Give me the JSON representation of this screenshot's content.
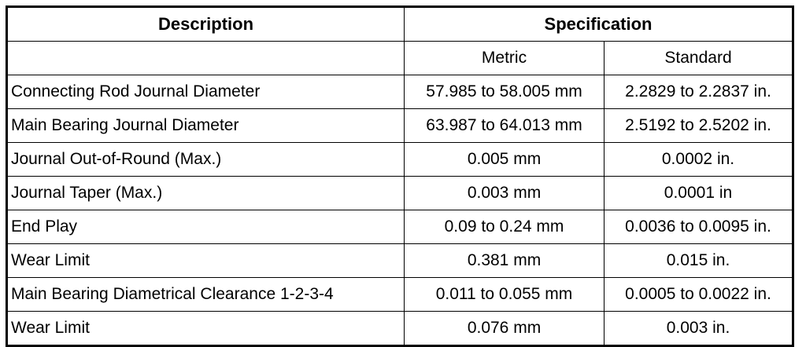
{
  "header": {
    "description": "Description",
    "specification": "Specification"
  },
  "subheader": {
    "metric": "Metric",
    "standard": "Standard"
  },
  "rows": [
    [
      "Connecting Rod Journal Diameter",
      "57.985 to 58.005 mm",
      "2.2829 to 2.2837 in."
    ],
    [
      "Main Bearing Journal Diameter",
      "63.987 to 64.013 mm",
      "2.5192 to 2.5202 in."
    ],
    [
      "Journal Out-of-Round (Max.)",
      "0.005 mm",
      "0.0002 in."
    ],
    [
      "Journal Taper (Max.)",
      "0.003 mm",
      "0.0001 in"
    ],
    [
      "End Play",
      "0.09 to 0.24 mm",
      "0.0036 to 0.0095 in."
    ],
    [
      "Wear Limit",
      "0.381 mm",
      "0.015 in."
    ],
    [
      "Main Bearing Diametrical Clearance 1-2-3-4",
      "0.011 to 0.055 mm",
      "0.0005 to 0.0022 in."
    ],
    [
      "Wear Limit",
      "0.076 mm",
      "0.003 in."
    ]
  ]
}
